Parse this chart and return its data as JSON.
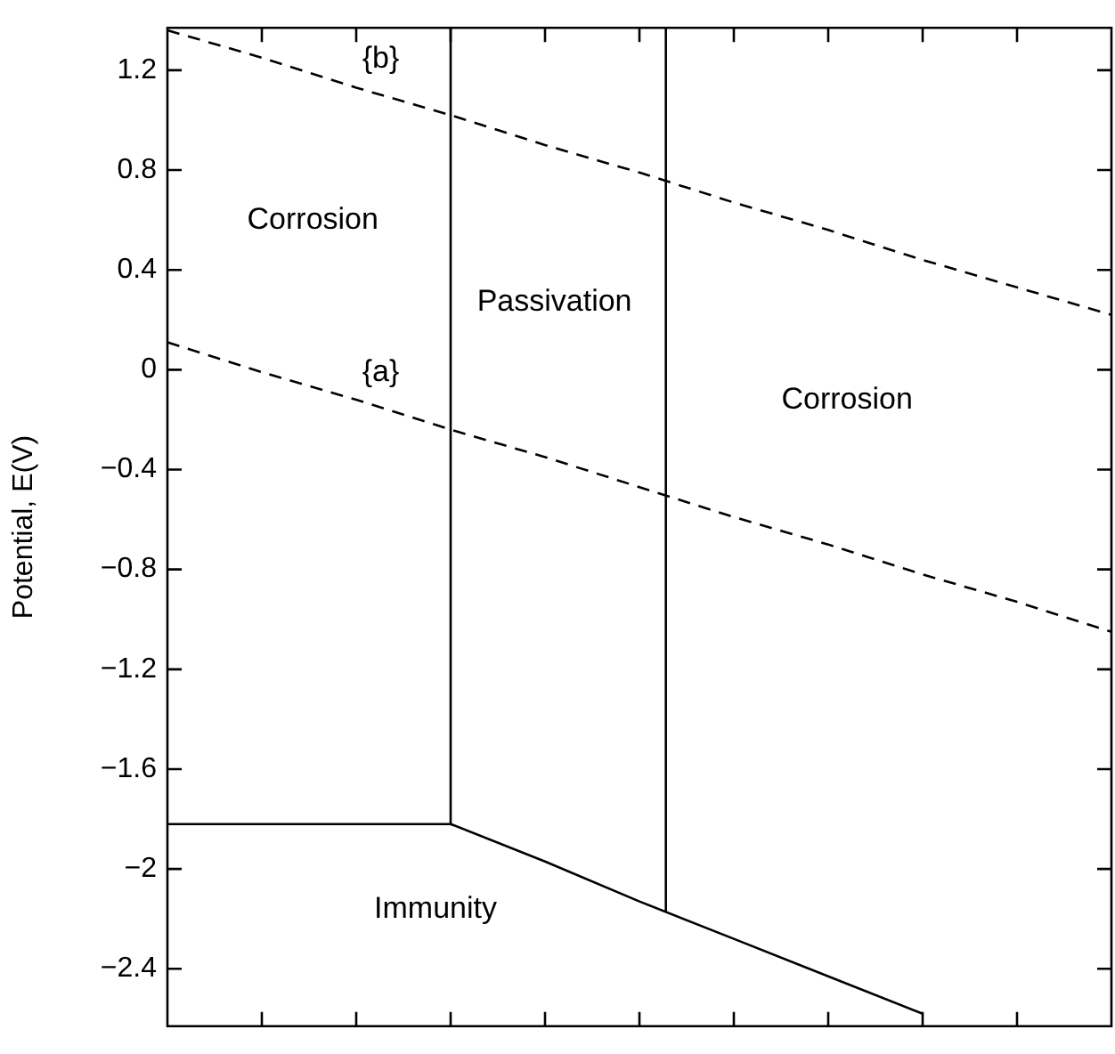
{
  "chart_data": {
    "type": "line",
    "ylabel": "Potential, E(V)",
    "categories": [
      null,
      null,
      null,
      null,
      null,
      null,
      null,
      null,
      null,
      null,
      null
    ],
    "ylim": [
      -2.63,
      1.37
    ],
    "yticks": [
      {
        "value": -2.4,
        "label": "−2.4"
      },
      {
        "value": -2,
        "label": "−2"
      },
      {
        "value": -1.6,
        "label": "−1.6"
      },
      {
        "value": -1.2,
        "label": "−1.2"
      },
      {
        "value": -0.8,
        "label": "−0.8"
      },
      {
        "value": -0.4,
        "label": "−0.4"
      },
      {
        "value": 0,
        "label": "0"
      },
      {
        "value": 0.4,
        "label": "0.4"
      },
      {
        "value": 0.8,
        "label": "0.8"
      },
      {
        "value": 1.2,
        "label": "1.2"
      }
    ],
    "grid": false,
    "legend": false,
    "marker": "none",
    "series": [
      {
        "color": "#000000",
        "line_style": "dashed",
        "values": [
          1.36,
          1.25,
          1.13,
          1.02,
          0.9,
          0.79,
          0.67,
          0.56,
          0.44,
          0.33,
          0.22
        ]
      },
      {
        "color": "#000000",
        "line_style": "dashed",
        "values": [
          0.11,
          -0.01,
          -0.12,
          -0.24,
          -0.35,
          -0.47,
          -0.59,
          -0.7,
          -0.82,
          -0.93,
          -1.05
        ]
      },
      {
        "color": "#000000",
        "line_style": "solid",
        "values": [
          -1.82,
          -1.82,
          -1.82,
          -1.82,
          -1.97,
          -2.13,
          -2.28,
          -2.43,
          -2.58,
          null,
          null
        ]
      }
    ],
    "annotations": [
      "{b}",
      "{a}",
      "Corrosion",
      "Passivation",
      "Corrosion",
      "Immunity"
    ]
  }
}
